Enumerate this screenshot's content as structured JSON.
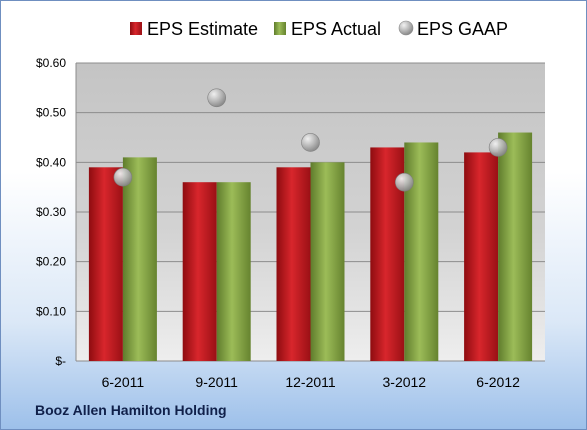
{
  "chart_data": {
    "type": "bar",
    "title": "",
    "xlabel": "",
    "ylabel": "",
    "categories": [
      "6-2011",
      "9-2011",
      "12-2011",
      "3-2012",
      "6-2012"
    ],
    "series": [
      {
        "name": "EPS Estimate",
        "kind": "bar",
        "color": "#c0191f",
        "values": [
          0.39,
          0.36,
          0.39,
          0.43,
          0.42
        ]
      },
      {
        "name": "EPS Actual",
        "kind": "bar",
        "color": "#8aaa48",
        "values": [
          0.41,
          0.36,
          0.4,
          0.44,
          0.46
        ]
      },
      {
        "name": "EPS GAAP",
        "kind": "marker",
        "color": "#b3b3b3",
        "values": [
          0.37,
          0.53,
          0.44,
          0.36,
          0.43
        ]
      }
    ],
    "ylim": [
      0,
      0.6
    ],
    "yticks": [
      0,
      0.1,
      0.2,
      0.3,
      0.4,
      0.5,
      0.6
    ],
    "ytick_labels": [
      "$-",
      "$0.10",
      "$0.20",
      "$0.30",
      "$0.40",
      "$0.50",
      "$0.60"
    ],
    "grid": true,
    "legend_position": "top"
  },
  "footer": {
    "company": "Booz Allen Hamilton Holding"
  }
}
